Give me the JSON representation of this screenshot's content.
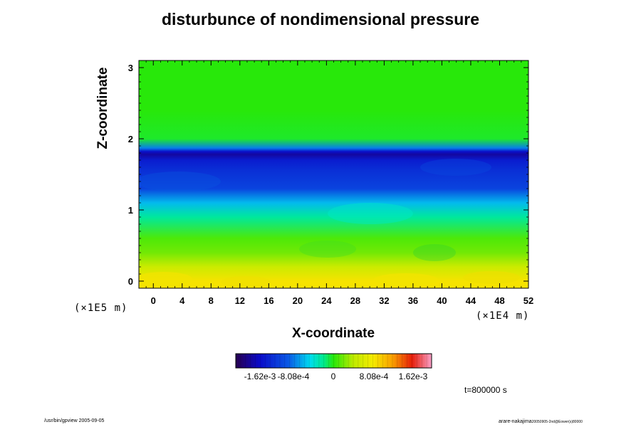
{
  "chart_data": {
    "type": "heatmap",
    "title": "disturbunce of nondimensional pressure",
    "xlabel": "X-coordinate",
    "ylabel": "Z-coordinate",
    "x_unit": "(×1E4 m)",
    "z_unit": "(×1E5 m)",
    "x_range": [
      -2,
      52
    ],
    "z_range": [
      -0.1,
      3.1
    ],
    "x_ticks": [
      "0",
      "4",
      "8",
      "12",
      "16",
      "20",
      "24",
      "28",
      "32",
      "36",
      "40",
      "44",
      "48",
      "52"
    ],
    "z_ticks": [
      "0",
      "1",
      "2",
      "3"
    ],
    "colorbar": {
      "range": [
        -0.00202,
        0.00202
      ],
      "tick_labels": [
        "-1.62e-3",
        "-8.08e-4",
        "0",
        "8.08e-4",
        "1.62e-3"
      ],
      "tick_values": [
        -0.00162,
        -0.000808,
        0,
        0.000808,
        0.00162
      ]
    },
    "vertical_profile": {
      "z": [
        0.0,
        0.2,
        0.4,
        0.6,
        0.9,
        1.1,
        1.3,
        1.55,
        1.7,
        1.78,
        1.82,
        1.87,
        2.0,
        2.4,
        3.1
      ],
      "value": [
        0.00085,
        0.0005,
        0.0002,
        0.0001,
        -0.00025,
        -0.0006,
        -0.0011,
        -0.00125,
        -0.0014,
        -0.0017,
        -0.0015,
        -0.0008,
        -5e-05,
        0.0,
        0.0
      ]
    }
  },
  "annotations": {
    "time": "t=800000 s",
    "footer_left": "/usr/bin/gpview 2005-09-05",
    "footer_right": "arare-nakajima",
    "footer_right_sub": "20050905-2nd@Eower(s)80000"
  }
}
